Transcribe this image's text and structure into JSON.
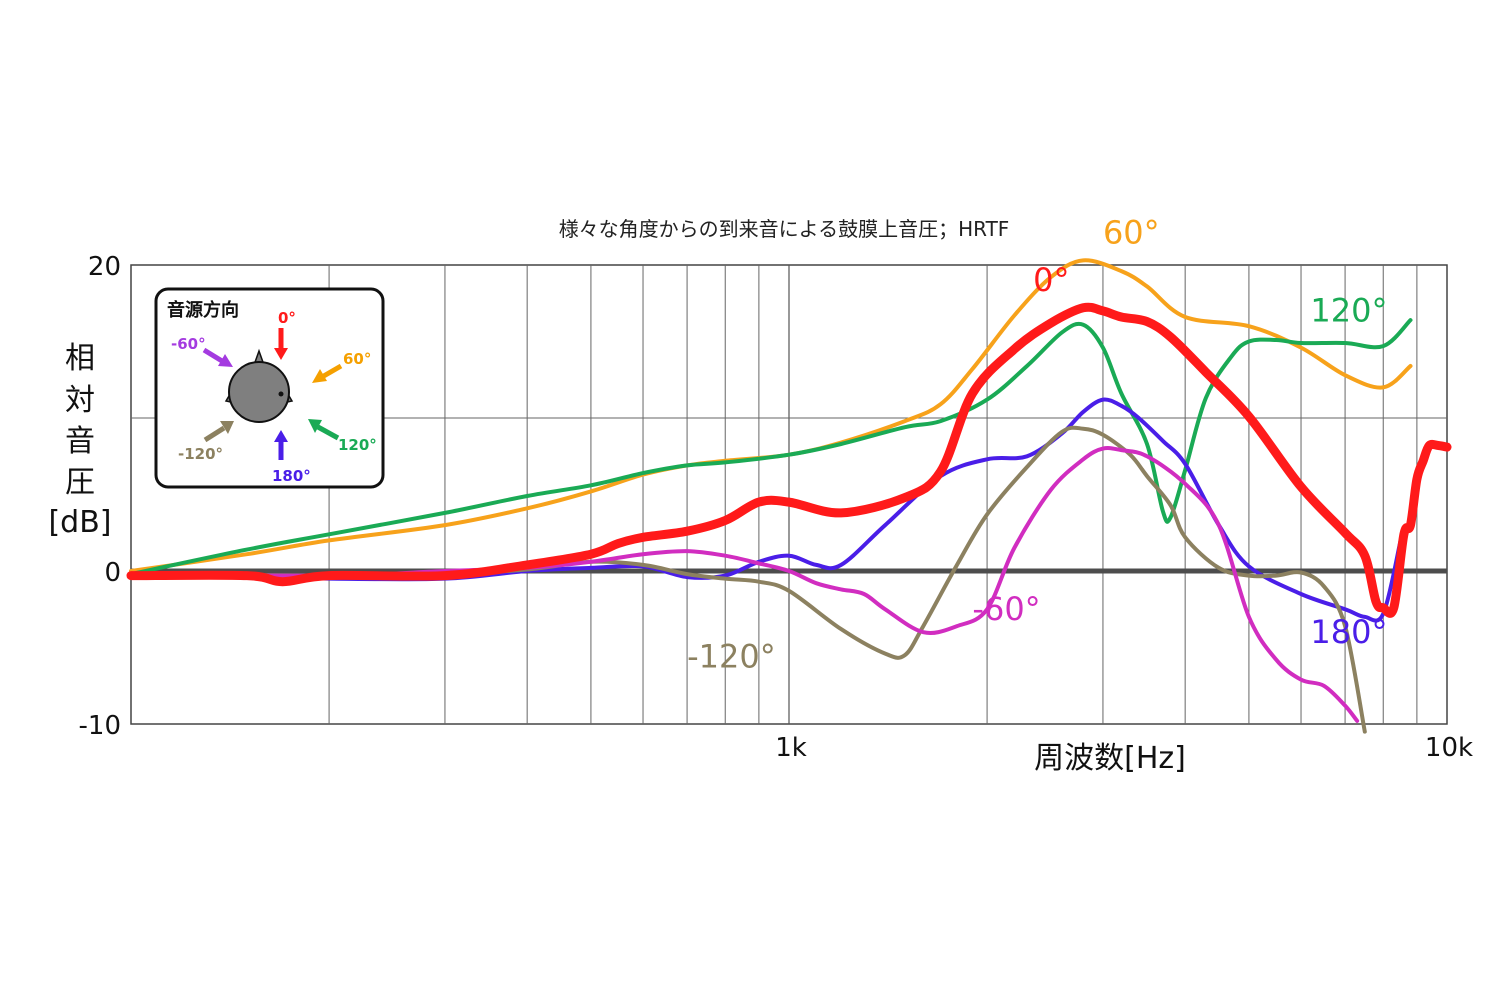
{
  "chart_data": {
    "type": "line",
    "title": "様々な角度からの到来音による鼓膜上音圧；HRTF",
    "xlabel": "周波数[Hz]",
    "ylabel": [
      "相",
      "対",
      "音",
      "圧",
      "[dB]"
    ],
    "x_scale": "log",
    "xlim": [
      100,
      10000
    ],
    "ylim": [
      -10,
      20
    ],
    "x_tick_labels": [
      {
        "value": 1000,
        "label": "1k"
      },
      {
        "value": 10000,
        "label": "10k"
      }
    ],
    "y_tick_labels": [
      {
        "value": 20,
        "label": "20"
      },
      {
        "value": 0,
        "label": "0"
      },
      {
        "value": -10,
        "label": "-10"
      }
    ],
    "grid": true,
    "legend": {
      "title": "音源方向",
      "placement": "top-left",
      "items": [
        {
          "label": "0°",
          "color": "#ff1a1a"
        },
        {
          "label": "60°",
          "color": "#f5a000"
        },
        {
          "label": "120°",
          "color": "#1aaa55"
        },
        {
          "label": "180°",
          "color": "#4a1ee8"
        },
        {
          "label": "-120°",
          "color": "#8c8160"
        },
        {
          "label": "-60°",
          "color": "#a43be0"
        }
      ]
    },
    "series": [
      {
        "name": "60°",
        "color": "#f7a21b",
        "width": 4,
        "x": [
          100,
          150,
          200,
          300,
          400,
          500,
          600,
          700,
          800,
          1000,
          1200,
          1500,
          1700,
          1900,
          2200,
          2500,
          2800,
          3200,
          3500,
          4000,
          5000,
          6000,
          7000,
          8000,
          8800
        ],
        "y": [
          0,
          1.1,
          2,
          3,
          4.1,
          5.2,
          6.3,
          6.9,
          7.2,
          7.6,
          8.4,
          9.8,
          10.9,
          13.2,
          16.7,
          19.2,
          20.3,
          19.6,
          18.6,
          16.6,
          16,
          14.6,
          12.8,
          12,
          13.4
        ]
      },
      {
        "name": "120°",
        "color": "#1aaa55",
        "width": 4,
        "x": [
          100,
          150,
          200,
          300,
          400,
          500,
          600,
          700,
          800,
          1000,
          1200,
          1500,
          1700,
          2000,
          2300,
          2600,
          2800,
          3000,
          3200,
          3500,
          3700,
          3800,
          4000,
          4300,
          4700,
          5000,
          5500,
          6000,
          7000,
          8000,
          8800
        ],
        "y": [
          -0.2,
          1.4,
          2.4,
          3.8,
          4.9,
          5.6,
          6.4,
          6.9,
          7.1,
          7.6,
          8.3,
          9.4,
          9.8,
          11.2,
          13.4,
          15.6,
          16.1,
          14.6,
          11.6,
          8.3,
          3.9,
          3.5,
          6.6,
          11.3,
          14,
          15,
          15.1,
          14.9,
          14.9,
          14.7,
          16.4
        ]
      },
      {
        "name": "0°",
        "color": "#ff1a1a",
        "width": 9,
        "x": [
          100,
          150,
          170,
          200,
          300,
          400,
          500,
          550,
          600,
          700,
          800,
          900,
          1000,
          1200,
          1500,
          1700,
          1900,
          2200,
          2500,
          2800,
          3000,
          3200,
          3500,
          3800,
          4300,
          5000,
          6000,
          7000,
          7500,
          7800,
          8000,
          8300,
          8600,
          8800,
          9000,
          9200,
          9400,
          9700,
          10000
        ],
        "y": [
          -0.3,
          -0.3,
          -0.7,
          -0.3,
          -0.3,
          0.4,
          1.1,
          1.8,
          2.2,
          2.6,
          3.3,
          4.5,
          4.5,
          3.8,
          4.8,
          6.5,
          11.6,
          14.5,
          16.2,
          17.2,
          17,
          16.6,
          16.3,
          15.3,
          13,
          10.1,
          5.5,
          2.5,
          1,
          -2,
          -2.4,
          -2.4,
          2.4,
          3,
          6,
          7.2,
          8.2,
          8.2,
          8.1
        ]
      },
      {
        "name": "180°",
        "color": "#4a1ee8",
        "width": 4,
        "x": [
          100,
          150,
          200,
          300,
          400,
          500,
          600,
          700,
          800,
          900,
          1000,
          1100,
          1200,
          1400,
          1700,
          2000,
          2300,
          2600,
          2800,
          3000,
          3200,
          3400,
          3700,
          4000,
          4500,
          5000,
          6000,
          7000,
          7500,
          8000,
          8500
        ],
        "y": [
          -0.2,
          -0.4,
          -0.5,
          -0.5,
          0,
          0.2,
          0.3,
          -0.4,
          -0.3,
          0.6,
          1,
          0.4,
          0.4,
          3,
          6.2,
          7.3,
          7.5,
          9,
          10.4,
          11.2,
          10.8,
          10,
          8.5,
          7,
          3,
          0.3,
          -1.5,
          -2.5,
          -3,
          -2.8,
          2
        ]
      },
      {
        "name": "-120°",
        "color": "#8c8160",
        "width": 4,
        "x": [
          100,
          200,
          300,
          400,
          500,
          600,
          700,
          800,
          900,
          1000,
          1200,
          1400,
          1500,
          1600,
          1800,
          2000,
          2300,
          2600,
          2800,
          3000,
          3300,
          3500,
          3800,
          4000,
          4500,
          5000,
          5500,
          6000,
          6500,
          7000,
          7500
        ],
        "y": [
          -0.2,
          -0.3,
          -0.2,
          0.1,
          0.6,
          0.4,
          -0.2,
          -0.5,
          -0.7,
          -1.3,
          -3.8,
          -5.4,
          -5.5,
          -3.6,
          0.4,
          3.7,
          6.8,
          9.1,
          9.3,
          8.9,
          7.6,
          6.2,
          4.3,
          2.2,
          0.2,
          -0.3,
          -0.3,
          -0.1,
          -1,
          -3.6,
          -10.5
        ]
      },
      {
        "name": "-60°",
        "color": "#d12dc0",
        "width": 4,
        "x": [
          100,
          200,
          300,
          400,
          500,
          600,
          700,
          800,
          900,
          1000,
          1100,
          1200,
          1300,
          1400,
          1600,
          1800,
          2000,
          2200,
          2500,
          2800,
          3000,
          3200,
          3500,
          4000,
          4500,
          5000,
          5500,
          6000,
          6500,
          7000,
          7300
        ],
        "y": [
          -0.2,
          -0.3,
          0,
          0.2,
          0.6,
          1.1,
          1.3,
          1,
          0.5,
          0,
          -0.8,
          -1.2,
          -1.5,
          -2.5,
          -4,
          -3.6,
          -2.5,
          1.5,
          5.3,
          7.3,
          8,
          7.9,
          7.5,
          5.7,
          3,
          -3,
          -5.8,
          -7.1,
          -7.5,
          -8.8,
          -9.8
        ]
      }
    ],
    "series_labels": [
      {
        "text": "60°",
        "color": "#f7a21b",
        "x": 3000,
        "y": 21.4
      },
      {
        "text": "0°",
        "color": "#ff1a1a",
        "x": 2350,
        "y": 18.3
      },
      {
        "text": "120°",
        "color": "#1aaa55",
        "x": 6200,
        "y": 16.3
      },
      {
        "text": "180°",
        "color": "#4a1ee8",
        "x": 6200,
        "y": -4.7
      },
      {
        "text": "-60°",
        "color": "#d12dc0",
        "x": 1900,
        "y": -3.2
      },
      {
        "text": "-120°",
        "color": "#8c8160",
        "x": 700,
        "y": -6.3
      }
    ]
  }
}
